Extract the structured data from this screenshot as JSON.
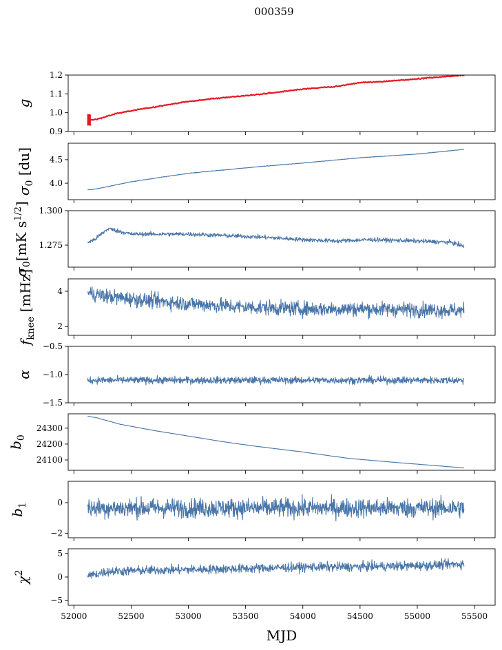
{
  "title": "000359",
  "xlabel": "MJD",
  "chart_data": {
    "type": "line",
    "x_range": [
      51950,
      55680
    ],
    "x_ticks": [
      52000,
      52500,
      53000,
      53500,
      54000,
      54500,
      55000,
      55500
    ],
    "x_tick_labels": [
      "52000",
      "52500",
      "53000",
      "53500",
      "54000",
      "54500",
      "55000",
      "55500"
    ],
    "x_start": 52120,
    "x_end": 55410,
    "colors": {
      "series": "#4a76a8",
      "errorbar": "#e8171e"
    },
    "panels": [
      {
        "id": "g",
        "ylabel": "g",
        "ylim": [
          0.9,
          1.2
        ],
        "yticks": [
          0.9,
          1.0,
          1.1,
          1.2
        ],
        "ytick_labels": [
          "0.9",
          "1.0",
          "1.1",
          "1.2"
        ],
        "series": {
          "x": [
            52120,
            52200,
            52400,
            52700,
            53000,
            53300,
            53500,
            53800,
            54000,
            54300,
            54500,
            54700,
            55000,
            55200,
            55400
          ],
          "y": [
            0.96,
            0.965,
            1.0,
            1.03,
            1.06,
            1.08,
            1.09,
            1.11,
            1.125,
            1.14,
            1.16,
            1.165,
            1.18,
            1.19,
            1.2
          ],
          "noise": 0.002
        },
        "errorbar_scatter": 0.004
      },
      {
        "id": "sigma0_du",
        "ylabel": "σ₀ [du]",
        "ylim": [
          3.65,
          4.85
        ],
        "yticks": [
          4.0,
          4.5
        ],
        "ytick_labels": [
          "4.0",
          "4.5"
        ],
        "series": {
          "x": [
            52120,
            52200,
            52500,
            52800,
            53000,
            53300,
            53700,
            54000,
            54500,
            55000,
            55410
          ],
          "y": [
            3.86,
            3.88,
            4.03,
            4.14,
            4.21,
            4.28,
            4.37,
            4.43,
            4.54,
            4.62,
            4.72
          ],
          "noise": 0.004
        }
      },
      {
        "id": "sigma0_mk",
        "ylabel": "σ₀[mK s^1/2]",
        "ylim": [
          1.259,
          1.3
        ],
        "yticks": [
          1.275,
          1.3
        ],
        "ytick_labels": [
          "1.275",
          "1.300"
        ],
        "series": {
          "x": [
            52120,
            52180,
            52300,
            52500,
            52800,
            53000,
            53300,
            53600,
            54000,
            54300,
            54600,
            55000,
            55300,
            55410
          ],
          "y": [
            1.277,
            1.279,
            1.287,
            1.283,
            1.283,
            1.283,
            1.282,
            1.281,
            1.279,
            1.278,
            1.279,
            1.278,
            1.277,
            1.274
          ],
          "noise": 0.0011
        }
      },
      {
        "id": "fknee",
        "ylabel": "f_knee [mHz]",
        "ylim": [
          1.5,
          4.7
        ],
        "yticks": [
          2,
          4
        ],
        "ytick_labels": [
          "2",
          "4"
        ],
        "series": {
          "x": [
            52120,
            52300,
            52600,
            53000,
            53500,
            54000,
            54500,
            55000,
            55410
          ],
          "y": [
            3.9,
            3.7,
            3.5,
            3.3,
            3.1,
            3.0,
            3.0,
            2.95,
            2.9
          ],
          "noise": 0.3
        }
      },
      {
        "id": "alpha",
        "ylabel": "α",
        "ylim": [
          -1.5,
          -0.5
        ],
        "yticks": [
          -1.5,
          -1.0,
          -0.5
        ],
        "ytick_labels": [
          "−1.5",
          "−1.0",
          "−0.5"
        ],
        "series": {
          "x": [
            52120,
            55410
          ],
          "y": [
            -1.1,
            -1.1
          ],
          "noise": 0.045
        }
      },
      {
        "id": "b0",
        "ylabel": "b₀",
        "ylim": [
          24035,
          24390
        ],
        "yticks": [
          24100,
          24200,
          24300
        ],
        "ytick_labels": [
          "24100",
          "24200",
          "24300"
        ],
        "series": {
          "x": [
            52120,
            52200,
            52400,
            52700,
            53000,
            53300,
            53600,
            54000,
            54400,
            54800,
            55200,
            55410
          ],
          "y": [
            24375,
            24365,
            24325,
            24285,
            24250,
            24215,
            24185,
            24150,
            24110,
            24085,
            24062,
            24050
          ],
          "noise": 0.6
        }
      },
      {
        "id": "b1",
        "ylabel": "b₁",
        "ylim": [
          -2.3,
          1.4
        ],
        "yticks": [
          -2,
          0
        ],
        "ytick_labels": [
          "−2",
          "0"
        ],
        "series": {
          "x": [
            52120,
            55410
          ],
          "y": [
            -0.35,
            -0.35
          ],
          "noise": 0.45
        }
      },
      {
        "id": "chi2",
        "ylabel": "χ²",
        "ylim": [
          -6,
          6
        ],
        "yticks": [
          -5,
          0,
          5
        ],
        "ytick_labels": [
          "−5",
          "0",
          "5"
        ],
        "series": {
          "x": [
            52120,
            52300,
            52800,
            53300,
            54000,
            54500,
            55000,
            55410
          ],
          "y": [
            0.2,
            1.2,
            1.5,
            1.7,
            2.1,
            2.2,
            2.4,
            2.8
          ],
          "noise": 0.7
        }
      }
    ]
  }
}
